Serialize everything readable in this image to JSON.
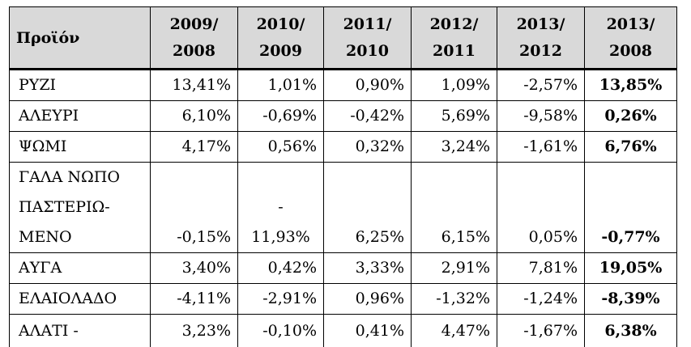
{
  "header": {
    "product": "Προϊόν",
    "periods": [
      {
        "top": "2009/",
        "bottom": "2008"
      },
      {
        "top": "2010/",
        "bottom": "2009"
      },
      {
        "top": "2011/",
        "bottom": "2010"
      },
      {
        "top": "2012/",
        "bottom": "2011"
      },
      {
        "top": "2013/",
        "bottom": "2012"
      },
      {
        "top": "2013/",
        "bottom": "2008"
      }
    ]
  },
  "rows": [
    {
      "name": "ΡΥΖΙ",
      "v": [
        "13,41%",
        "1,01%",
        "0,90%",
        "1,09%",
        "-2,57%",
        "13,85%"
      ]
    },
    {
      "name": "ΑΛΕΥΡΙ",
      "v": [
        "6,10%",
        "-0,69%",
        "-0,42%",
        "5,69%",
        "-9,58%",
        "0,26%"
      ]
    },
    {
      "name": "ΨΩΜΙ",
      "v": [
        "4,17%",
        "0,56%",
        "0,32%",
        "3,24%",
        "-1,61%",
        "6,76%"
      ]
    },
    {
      "name_lines": [
        "ΓΑΛΑ ΝΩΠΟ",
        "ΠΑΣΤΕΡΙΩ-",
        "ΜΕΝΟ"
      ],
      "v": [
        "-0,15%",
        "11,93%",
        "6,25%",
        "6,15%",
        "0,05%",
        "-0,77%"
      ],
      "v2_prefix": "-"
    },
    {
      "name": "ΑΥΓΑ",
      "v": [
        "3,40%",
        "0,42%",
        "3,33%",
        "2,91%",
        "7,81%",
        "19,05%"
      ]
    },
    {
      "name": "ΕΛΑΙΟΛΑΔΟ",
      "v": [
        "-4,11%",
        "-2,91%",
        "0,96%",
        "-1,32%",
        "-1,24%",
        "-8,39%"
      ]
    },
    {
      "name": "ΑΛΑΤΙ -",
      "v": [
        "3,23%",
        "-0,10%",
        "0,41%",
        "4,47%",
        "-1,67%",
        "6,38%"
      ]
    }
  ]
}
